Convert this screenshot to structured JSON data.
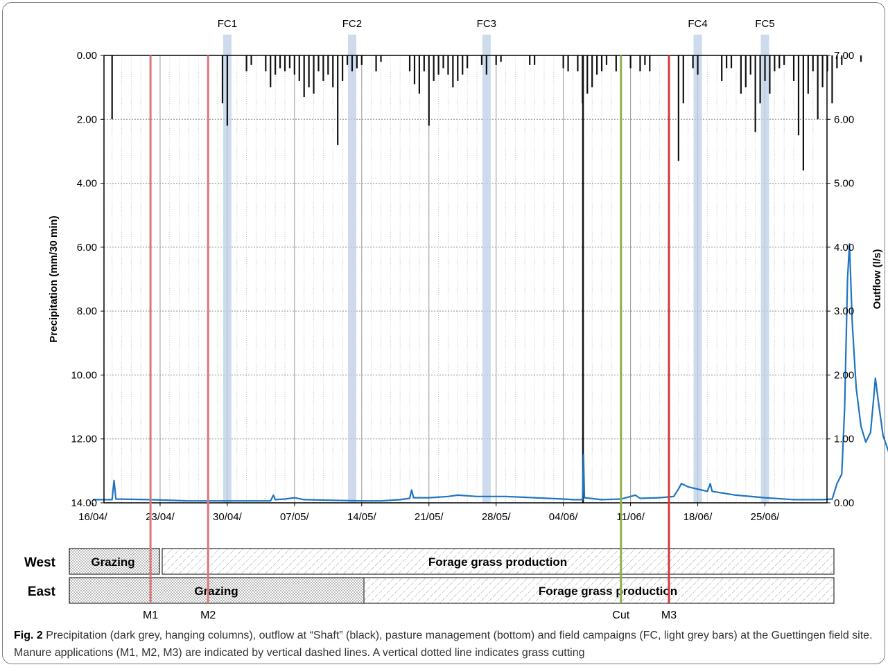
{
  "chart_data": {
    "type": "combo (inverted bar + line + timeline)",
    "x": {
      "tick_labels": [
        "16/04/",
        "23/04/",
        "30/04/",
        "07/05/",
        "14/05/",
        "21/05/",
        "28/05/",
        "04/06/",
        "11/06/",
        "18/06/",
        "25/06/"
      ],
      "range_days_from_16_04": [
        0,
        72
      ]
    },
    "y_left": {
      "label": "Precipitation (mm/30 min)",
      "range": [
        0,
        14
      ],
      "inverted": true,
      "ticks": [
        "0.00",
        "2.00",
        "4.00",
        "6.00",
        "8.00",
        "10.00",
        "12.00",
        "14.00"
      ]
    },
    "y_right": {
      "label": "Outflow (l/s)",
      "range": [
        0,
        7
      ],
      "ticks": [
        "7.00",
        "6.00",
        "5.00",
        "4.00",
        "3.00",
        "2.00",
        "1.00",
        "0.00"
      ]
    },
    "field_campaigns": [
      {
        "label": "FC1",
        "date": "30/04"
      },
      {
        "label": "FC2",
        "date": "13/05"
      },
      {
        "label": "FC3",
        "date": "27/05"
      },
      {
        "label": "FC4",
        "date": "18/06"
      },
      {
        "label": "FC5",
        "date": "25/06"
      }
    ],
    "events": [
      {
        "label": "M1",
        "date": "22/04",
        "color": "#d9777a"
      },
      {
        "label": "M2",
        "date": "28/04",
        "color": "#d9777a"
      },
      {
        "label": "Cut",
        "date": "10/06",
        "color": "#8fb04d"
      },
      {
        "label": "M3",
        "date": "15/06",
        "color": "#d23a3a"
      }
    ],
    "precipitation": [
      [
        2.0,
        2.0
      ],
      [
        13.5,
        1.5
      ],
      [
        14.0,
        2.2
      ],
      [
        16.0,
        0.5
      ],
      [
        16.5,
        0.3
      ],
      [
        18.0,
        0.5
      ],
      [
        18.5,
        1.0
      ],
      [
        19.0,
        0.6
      ],
      [
        19.5,
        0.4
      ],
      [
        20.0,
        0.5
      ],
      [
        20.5,
        0.4
      ],
      [
        21.0,
        0.6
      ],
      [
        21.5,
        0.8
      ],
      [
        22.0,
        1.3
      ],
      [
        22.5,
        1.0
      ],
      [
        23.0,
        1.2
      ],
      [
        23.5,
        0.5
      ],
      [
        24.0,
        0.8
      ],
      [
        24.5,
        0.6
      ],
      [
        25.0,
        1.0
      ],
      [
        25.5,
        2.8
      ],
      [
        26.0,
        0.8
      ],
      [
        26.5,
        0.3
      ],
      [
        27.0,
        0.5
      ],
      [
        27.5,
        0.4
      ],
      [
        28.0,
        0.3
      ],
      [
        29.5,
        0.5
      ],
      [
        30.0,
        0.2
      ],
      [
        33.0,
        0.5
      ],
      [
        33.5,
        0.9
      ],
      [
        34.0,
        1.2
      ],
      [
        34.5,
        0.5
      ],
      [
        35.0,
        2.2
      ],
      [
        35.5,
        0.8
      ],
      [
        36.0,
        0.6
      ],
      [
        36.5,
        0.4
      ],
      [
        37.0,
        0.6
      ],
      [
        37.5,
        1.0
      ],
      [
        38.0,
        0.8
      ],
      [
        38.5,
        0.6
      ],
      [
        39.0,
        0.4
      ],
      [
        40.5,
        0.3
      ],
      [
        41.0,
        0.6
      ],
      [
        42.0,
        0.3
      ],
      [
        42.5,
        0.2
      ],
      [
        45.5,
        0.3
      ],
      [
        46.0,
        0.3
      ],
      [
        49.0,
        0.4
      ],
      [
        49.5,
        0.5
      ],
      [
        50.5,
        0.5
      ],
      [
        51.0,
        1.5
      ],
      [
        51.5,
        1.2
      ],
      [
        52.0,
        1.0
      ],
      [
        52.5,
        0.6
      ],
      [
        53.0,
        0.5
      ],
      [
        53.5,
        0.3
      ],
      [
        54.5,
        0.5
      ],
      [
        55.0,
        0.5
      ],
      [
        56.0,
        0.4
      ],
      [
        57.0,
        0.5
      ],
      [
        57.5,
        0.3
      ],
      [
        58.0,
        0.5
      ],
      [
        60.0,
        0.3
      ],
      [
        61.0,
        3.3
      ],
      [
        61.5,
        1.5
      ],
      [
        62.5,
        0.4
      ],
      [
        63.0,
        0.6
      ],
      [
        65.5,
        0.8
      ],
      [
        66.0,
        0.4
      ],
      [
        66.5,
        0.4
      ],
      [
        67.5,
        1.2
      ],
      [
        68.0,
        1.0
      ],
      [
        68.5,
        0.6
      ],
      [
        69.0,
        2.4
      ],
      [
        69.5,
        1.5
      ],
      [
        70.0,
        0.8
      ],
      [
        70.5,
        1.2
      ],
      [
        71.0,
        0.5
      ],
      [
        71.5,
        0.4
      ],
      [
        72.0,
        0.3
      ],
      [
        73.0,
        0.8
      ],
      [
        73.5,
        2.5
      ],
      [
        74.0,
        3.6
      ],
      [
        74.5,
        1.2
      ],
      [
        75.0,
        0.5
      ],
      [
        75.5,
        2.0
      ],
      [
        76.0,
        1.0
      ],
      [
        76.5,
        0.5
      ],
      [
        77.0,
        1.5
      ],
      [
        77.5,
        0.4
      ],
      [
        78.0,
        0.3
      ],
      [
        80.0,
        0.2
      ]
    ],
    "outflow": [
      [
        0,
        0.05
      ],
      [
        2.0,
        0.05
      ],
      [
        2.2,
        0.35
      ],
      [
        2.4,
        0.06
      ],
      [
        6,
        0.05
      ],
      [
        10,
        0.03
      ],
      [
        16,
        0.03
      ],
      [
        18.5,
        0.03
      ],
      [
        18.8,
        0.12
      ],
      [
        19,
        0.05
      ],
      [
        20,
        0.06
      ],
      [
        21,
        0.08
      ],
      [
        22,
        0.05
      ],
      [
        25,
        0.04
      ],
      [
        28,
        0.03
      ],
      [
        30,
        0.03
      ],
      [
        32,
        0.05
      ],
      [
        33,
        0.07
      ],
      [
        33.2,
        0.2
      ],
      [
        33.4,
        0.08
      ],
      [
        35,
        0.08
      ],
      [
        37,
        0.1
      ],
      [
        38,
        0.12
      ],
      [
        40,
        0.1
      ],
      [
        43,
        0.1
      ],
      [
        46,
        0.08
      ],
      [
        49,
        0.06
      ],
      [
        50,
        0.05
      ],
      [
        51.0,
        0.05
      ],
      [
        51.1,
        0.75
      ],
      [
        51.2,
        0.08
      ],
      [
        53,
        0.05
      ],
      [
        55,
        0.06
      ],
      [
        56,
        0.1
      ],
      [
        56.5,
        0.12
      ],
      [
        57,
        0.07
      ],
      [
        59,
        0.08
      ],
      [
        60.5,
        0.1
      ],
      [
        61,
        0.22
      ],
      [
        61.3,
        0.3
      ],
      [
        62,
        0.25
      ],
      [
        64,
        0.18
      ],
      [
        64.3,
        0.3
      ],
      [
        64.5,
        0.18
      ],
      [
        67,
        0.12
      ],
      [
        70,
        0.08
      ],
      [
        73,
        0.05
      ],
      [
        74,
        0.05
      ],
      [
        76,
        0.05
      ],
      [
        77.0,
        0.06
      ],
      [
        77.5,
        0.3
      ],
      [
        78.0,
        0.45
      ],
      [
        78.3,
        1.5
      ],
      [
        78.6,
        3.5
      ],
      [
        78.8,
        4.05
      ],
      [
        79.1,
        2.8
      ],
      [
        79.5,
        1.8
      ],
      [
        80.0,
        1.2
      ],
      [
        80.5,
        0.95
      ],
      [
        81.0,
        1.1
      ],
      [
        81.3,
        1.6
      ],
      [
        81.5,
        1.95
      ],
      [
        81.8,
        1.6
      ],
      [
        82.3,
        1.05
      ],
      [
        83.0,
        0.75
      ],
      [
        84,
        0.5
      ],
      [
        85,
        0.35
      ],
      [
        86,
        0.28
      ],
      [
        88,
        0.22
      ],
      [
        90,
        0.2
      ],
      [
        92,
        0.18
      ],
      [
        94,
        0.15
      ],
      [
        96,
        0.14
      ],
      [
        98,
        0.13
      ],
      [
        100,
        0.12
      ]
    ],
    "management": [
      {
        "row": "West",
        "segments": [
          {
            "label": "Grazing",
            "pattern": "dots"
          },
          {
            "label": "Forage grass production",
            "pattern": "hatch"
          }
        ]
      },
      {
        "row": "East",
        "segments": [
          {
            "label": "Grazing",
            "pattern": "dots"
          },
          {
            "label": "Forage grass production",
            "pattern": "hatch"
          }
        ]
      }
    ]
  },
  "caption": {
    "label": "Fig. 2",
    "text": "Precipitation (dark grey, hanging columns), outflow at “Shaft” (black), pasture management (bottom) and field campaigns (FC, light grey bars) at the Guettingen field site. Manure applications (M1, M2, M3) are indicated by vertical dashed lines. A vertical dotted line indicates grass cutting"
  }
}
